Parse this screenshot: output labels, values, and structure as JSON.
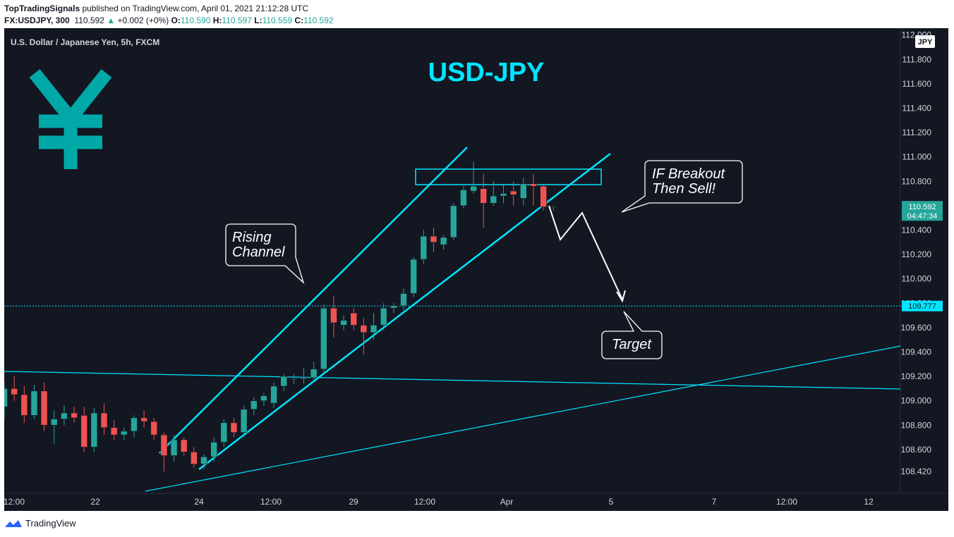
{
  "header": {
    "publisher": "TopTradingSignals",
    "published_text": " published on TradingView.com, April 01, 2021 21:12:28 UTC",
    "symbol": "FX:USDJPY, 300",
    "last": "110.592",
    "change": "+0.002 (+0%)",
    "o_label": "O:",
    "o": "110.590",
    "h_label": "H:",
    "h": "110.597",
    "l_label": "L:",
    "l": "110.559",
    "c_label": "C:",
    "c": "110.592"
  },
  "footer": {
    "brand": "TradingView"
  },
  "chart_data": {
    "type": "candlestick",
    "title": "USD-JPY",
    "subtitle": "U.S. Dollar / Japanese Yen, 5h, FXCM",
    "currency_badge": "JPY",
    "ylim": [
      108.3,
      112.0
    ],
    "y_ticks": [
      "112.000",
      "111.800",
      "111.600",
      "111.400",
      "111.200",
      "111.000",
      "110.800",
      "110.600",
      "110.400",
      "110.200",
      "110.000",
      "109.800",
      "109.600",
      "109.400",
      "109.200",
      "109.000",
      "108.800",
      "108.600",
      "108.420"
    ],
    "x_ticks": [
      "12:00",
      "22",
      "24",
      "12:00",
      "29",
      "12:00",
      "Apr",
      "5",
      "7",
      "12:00",
      "12"
    ],
    "last_price": {
      "price": "110.592",
      "countdown": "04:47:34"
    },
    "target_price": "109.777",
    "colors": {
      "bull": "#26a69a",
      "bear": "#ef5350",
      "lines": "#00e5ff",
      "background": "#131722",
      "yen": "#00a8a8"
    },
    "candles": [
      {
        "o": 108.95,
        "h": 109.15,
        "l": 108.85,
        "c": 109.1
      },
      {
        "o": 109.1,
        "h": 109.2,
        "l": 109.0,
        "c": 109.05
      },
      {
        "o": 109.05,
        "h": 109.12,
        "l": 108.82,
        "c": 108.88
      },
      {
        "o": 108.88,
        "h": 109.13,
        "l": 108.85,
        "c": 109.08
      },
      {
        "o": 109.08,
        "h": 109.15,
        "l": 108.75,
        "c": 108.8
      },
      {
        "o": 108.8,
        "h": 108.92,
        "l": 108.65,
        "c": 108.85
      },
      {
        "o": 108.85,
        "h": 108.96,
        "l": 108.8,
        "c": 108.9
      },
      {
        "o": 108.9,
        "h": 108.95,
        "l": 108.82,
        "c": 108.86
      },
      {
        "o": 108.88,
        "h": 108.95,
        "l": 108.58,
        "c": 108.62
      },
      {
        "o": 108.62,
        "h": 108.94,
        "l": 108.58,
        "c": 108.9
      },
      {
        "o": 108.9,
        "h": 108.98,
        "l": 108.72,
        "c": 108.78
      },
      {
        "o": 108.78,
        "h": 108.84,
        "l": 108.68,
        "c": 108.72
      },
      {
        "o": 108.72,
        "h": 108.78,
        "l": 108.68,
        "c": 108.75
      },
      {
        "o": 108.75,
        "h": 108.88,
        "l": 108.7,
        "c": 108.86
      },
      {
        "o": 108.86,
        "h": 108.92,
        "l": 108.78,
        "c": 108.83
      },
      {
        "o": 108.83,
        "h": 108.86,
        "l": 108.68,
        "c": 108.72
      },
      {
        "o": 108.72,
        "h": 108.74,
        "l": 108.42,
        "c": 108.55
      },
      {
        "o": 108.55,
        "h": 108.72,
        "l": 108.5,
        "c": 108.68
      },
      {
        "o": 108.68,
        "h": 108.7,
        "l": 108.55,
        "c": 108.58
      },
      {
        "o": 108.58,
        "h": 108.62,
        "l": 108.45,
        "c": 108.48
      },
      {
        "o": 108.48,
        "h": 108.56,
        "l": 108.44,
        "c": 108.54
      },
      {
        "o": 108.54,
        "h": 108.7,
        "l": 108.5,
        "c": 108.66
      },
      {
        "o": 108.66,
        "h": 108.85,
        "l": 108.62,
        "c": 108.82
      },
      {
        "o": 108.82,
        "h": 108.86,
        "l": 108.7,
        "c": 108.74
      },
      {
        "o": 108.74,
        "h": 108.96,
        "l": 108.7,
        "c": 108.93
      },
      {
        "o": 108.93,
        "h": 109.03,
        "l": 108.88,
        "c": 109.0
      },
      {
        "o": 109.0,
        "h": 109.06,
        "l": 108.96,
        "c": 109.04
      },
      {
        "o": 108.98,
        "h": 109.15,
        "l": 108.94,
        "c": 109.12
      },
      {
        "o": 109.12,
        "h": 109.22,
        "l": 109.08,
        "c": 109.2
      },
      {
        "o": 109.18,
        "h": 109.22,
        "l": 109.14,
        "c": 109.18
      },
      {
        "o": 109.18,
        "h": 109.27,
        "l": 109.14,
        "c": 109.19
      },
      {
        "o": 109.19,
        "h": 109.32,
        "l": 109.16,
        "c": 109.26
      },
      {
        "o": 109.26,
        "h": 109.79,
        "l": 109.22,
        "c": 109.76
      },
      {
        "o": 109.76,
        "h": 109.86,
        "l": 109.52,
        "c": 109.64
      },
      {
        "o": 109.62,
        "h": 109.7,
        "l": 109.58,
        "c": 109.66
      },
      {
        "o": 109.72,
        "h": 109.76,
        "l": 109.58,
        "c": 109.62
      },
      {
        "o": 109.62,
        "h": 109.68,
        "l": 109.38,
        "c": 109.56
      },
      {
        "o": 109.56,
        "h": 109.72,
        "l": 109.5,
        "c": 109.62
      },
      {
        "o": 109.62,
        "h": 109.8,
        "l": 109.58,
        "c": 109.76
      },
      {
        "o": 109.76,
        "h": 109.8,
        "l": 109.72,
        "c": 109.78
      },
      {
        "o": 109.78,
        "h": 109.92,
        "l": 109.74,
        "c": 109.88
      },
      {
        "o": 109.88,
        "h": 110.18,
        "l": 109.85,
        "c": 110.16
      },
      {
        "o": 110.16,
        "h": 110.4,
        "l": 110.12,
        "c": 110.35
      },
      {
        "o": 110.35,
        "h": 110.42,
        "l": 110.22,
        "c": 110.3
      },
      {
        "o": 110.28,
        "h": 110.36,
        "l": 110.24,
        "c": 110.34
      },
      {
        "o": 110.34,
        "h": 110.62,
        "l": 110.32,
        "c": 110.6
      },
      {
        "o": 110.6,
        "h": 110.76,
        "l": 110.58,
        "c": 110.73
      },
      {
        "o": 110.72,
        "h": 110.96,
        "l": 110.7,
        "c": 110.76
      },
      {
        "o": 110.74,
        "h": 110.86,
        "l": 110.42,
        "c": 110.62
      },
      {
        "o": 110.62,
        "h": 110.8,
        "l": 110.6,
        "c": 110.68
      },
      {
        "o": 110.68,
        "h": 110.77,
        "l": 110.62,
        "c": 110.7
      },
      {
        "o": 110.72,
        "h": 110.8,
        "l": 110.6,
        "c": 110.69
      },
      {
        "o": 110.66,
        "h": 110.83,
        "l": 110.6,
        "c": 110.78
      },
      {
        "o": 110.78,
        "h": 110.86,
        "l": 110.6,
        "c": 110.76
      },
      {
        "o": 110.76,
        "h": 110.77,
        "l": 110.56,
        "c": 110.59
      },
      {
        "o": 110.59,
        "h": 110.6,
        "l": 110.56,
        "c": 110.59
      }
    ],
    "annotations": [
      {
        "id": "rising-channel",
        "lines": [
          "Rising",
          "Channel"
        ]
      },
      {
        "id": "breakout",
        "lines": [
          "IF Breakout",
          "Then Sell!"
        ]
      },
      {
        "id": "target",
        "lines": [
          "Target"
        ]
      }
    ]
  }
}
